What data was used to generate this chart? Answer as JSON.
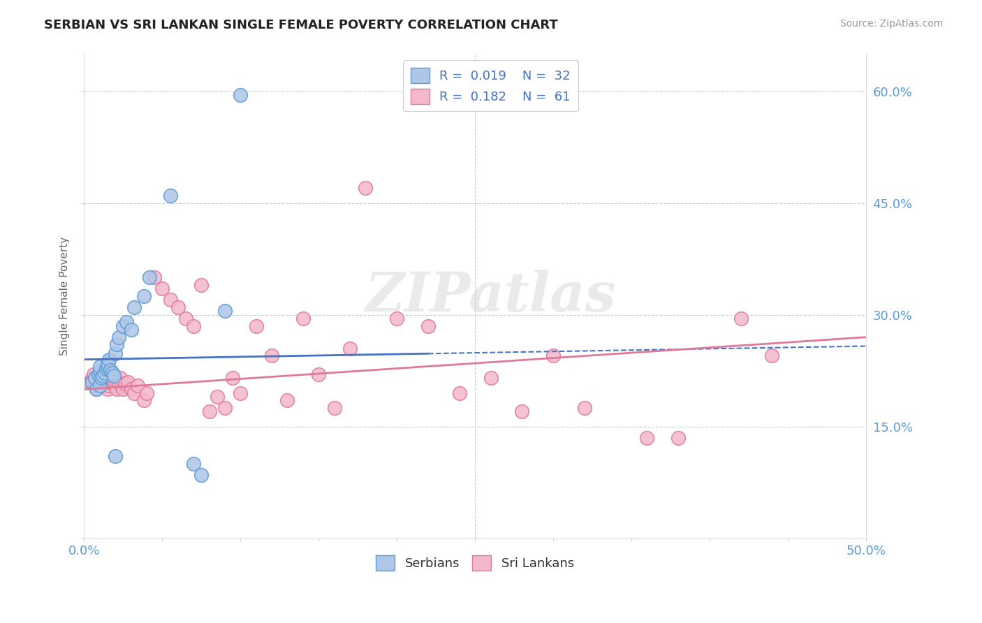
{
  "title": "SERBIAN VS SRI LANKAN SINGLE FEMALE POVERTY CORRELATION CHART",
  "source": "Source: ZipAtlas.com",
  "ylabel": "Single Female Poverty",
  "xlim": [
    0.0,
    0.5
  ],
  "ylim": [
    0.0,
    0.65
  ],
  "xtick_positions": [
    0.0,
    0.05,
    0.1,
    0.15,
    0.2,
    0.25,
    0.3,
    0.35,
    0.4,
    0.45,
    0.5
  ],
  "ytick_positions": [
    0.0,
    0.15,
    0.3,
    0.45,
    0.6
  ],
  "serbian_color": "#aec6e8",
  "serbian_edge_color": "#5b9bd5",
  "sri_lankan_color": "#f4b8cb",
  "sri_lankan_edge_color": "#e07898",
  "serbian_line_color": "#4472c4",
  "sri_lankan_line_color": "#e07898",
  "legend_color": "#4472c4",
  "watermark_color": "#d8d8d8",
  "grid_color": "#cccccc",
  "background_color": "#ffffff",
  "axis_label_color": "#5b9bd5",
  "ylabel_color": "#666666",
  "title_color": "#222222",
  "source_color": "#999999",
  "serbian_R": 0.019,
  "serbian_N": 32,
  "sri_lankan_R": 0.182,
  "sri_lankan_N": 61,
  "watermark": "ZIPatlas",
  "serb_x": [
    0.005,
    0.007,
    0.008,
    0.009,
    0.01,
    0.01,
    0.01,
    0.011,
    0.012,
    0.013,
    0.014,
    0.015,
    0.015,
    0.016,
    0.017,
    0.018,
    0.019,
    0.02,
    0.021,
    0.022,
    0.025,
    0.027,
    0.03,
    0.032,
    0.038,
    0.042,
    0.055,
    0.07,
    0.075,
    0.09,
    0.1,
    0.02
  ],
  "serb_y": [
    0.21,
    0.215,
    0.2,
    0.22,
    0.225,
    0.23,
    0.205,
    0.215,
    0.218,
    0.222,
    0.228,
    0.23,
    0.235,
    0.24,
    0.226,
    0.222,
    0.218,
    0.248,
    0.26,
    0.27,
    0.285,
    0.29,
    0.28,
    0.31,
    0.325,
    0.35,
    0.46,
    0.1,
    0.085,
    0.305,
    0.595,
    0.11
  ],
  "sl_x": [
    0.004,
    0.005,
    0.006,
    0.007,
    0.008,
    0.009,
    0.01,
    0.01,
    0.011,
    0.012,
    0.013,
    0.014,
    0.015,
    0.016,
    0.017,
    0.018,
    0.019,
    0.02,
    0.021,
    0.022,
    0.023,
    0.024,
    0.025,
    0.026,
    0.028,
    0.03,
    0.032,
    0.034,
    0.038,
    0.04,
    0.045,
    0.05,
    0.055,
    0.06,
    0.065,
    0.07,
    0.075,
    0.08,
    0.085,
    0.09,
    0.095,
    0.1,
    0.11,
    0.12,
    0.13,
    0.14,
    0.15,
    0.16,
    0.17,
    0.18,
    0.2,
    0.22,
    0.24,
    0.26,
    0.28,
    0.3,
    0.32,
    0.36,
    0.38,
    0.42,
    0.44
  ],
  "sl_y": [
    0.21,
    0.215,
    0.22,
    0.205,
    0.2,
    0.212,
    0.218,
    0.208,
    0.215,
    0.205,
    0.21,
    0.215,
    0.2,
    0.205,
    0.21,
    0.208,
    0.212,
    0.205,
    0.2,
    0.21,
    0.215,
    0.205,
    0.2,
    0.208,
    0.21,
    0.2,
    0.195,
    0.205,
    0.185,
    0.195,
    0.35,
    0.335,
    0.32,
    0.31,
    0.295,
    0.285,
    0.34,
    0.17,
    0.19,
    0.175,
    0.215,
    0.195,
    0.285,
    0.245,
    0.185,
    0.295,
    0.22,
    0.175,
    0.255,
    0.47,
    0.295,
    0.285,
    0.195,
    0.215,
    0.17,
    0.245,
    0.175,
    0.135,
    0.135,
    0.295,
    0.245
  ]
}
